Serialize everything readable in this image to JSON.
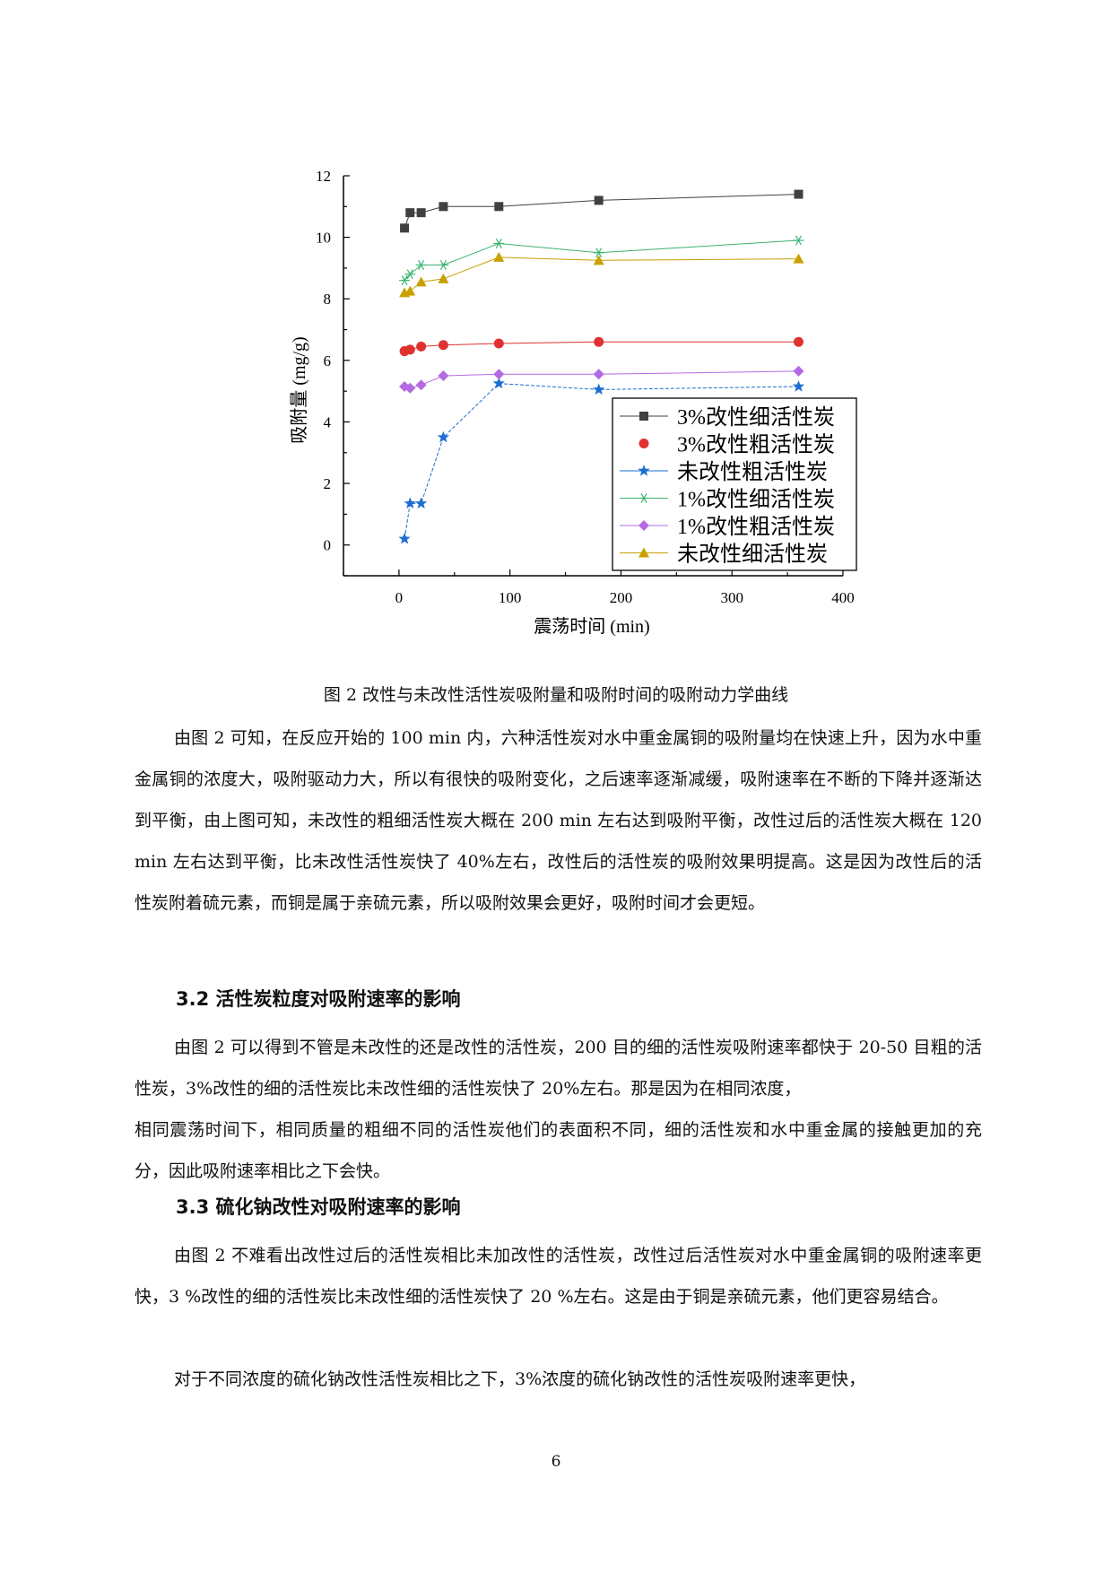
{
  "chart_data": {
    "type": "line",
    "xlabel": "震荡时间 (min)",
    "ylabel": "吸附量 (mg/g)",
    "xlim": [
      -50,
      400
    ],
    "ylim": [
      -1,
      12
    ],
    "xticks": [
      "0",
      "100",
      "200",
      "300",
      "400"
    ],
    "yticks": [
      "0",
      "2",
      "4",
      "6",
      "8",
      "10",
      "12"
    ],
    "legend_position": "bottom-right",
    "series": [
      {
        "name": "3%改性细活性炭",
        "marker": "square",
        "color": "#404040",
        "x": [
          5,
          10,
          20,
          40,
          90,
          180,
          360
        ],
        "y": [
          10.3,
          10.8,
          10.8,
          11.0,
          11.0,
          11.2,
          11.4
        ]
      },
      {
        "name": "3%改性粗活性炭",
        "marker": "circle",
        "color": "#e03131",
        "x": [
          5,
          10,
          20,
          40,
          90,
          180,
          360
        ],
        "y": [
          6.3,
          6.35,
          6.45,
          6.5,
          6.55,
          6.6,
          6.6
        ]
      },
      {
        "name": "未改性粗活性炭",
        "marker": "star",
        "color": "#1c6fd1",
        "x": [
          5,
          10,
          20,
          40,
          90,
          180,
          360
        ],
        "y": [
          0.2,
          1.35,
          1.35,
          3.5,
          5.25,
          5.05,
          5.15
        ]
      },
      {
        "name": "1%改性细活性炭",
        "marker": "asterisk",
        "color": "#3cb371",
        "x": [
          5,
          10,
          20,
          40,
          90,
          180,
          360
        ],
        "y": [
          8.6,
          8.8,
          9.1,
          9.1,
          9.8,
          9.5,
          9.9
        ]
      },
      {
        "name": "1%改性粗活性炭",
        "marker": "diamond",
        "color": "#b36ae2",
        "x": [
          5,
          10,
          20,
          40,
          90,
          180,
          360
        ],
        "y": [
          5.15,
          5.1,
          5.2,
          5.5,
          5.55,
          5.55,
          5.65
        ]
      },
      {
        "name": "未改性细活性炭",
        "marker": "triangle",
        "color": "#c9a000",
        "x": [
          5,
          10,
          20,
          40,
          90,
          180,
          360
        ],
        "y": [
          8.2,
          8.25,
          8.55,
          8.65,
          9.35,
          9.25,
          9.3
        ]
      }
    ]
  },
  "figure": {
    "caption": "图 2 改性与未改性活性炭吸附量和吸附时间的吸附动力学曲线"
  },
  "body": {
    "para1": "由图 2 可知，在反应开始的 100 min 内，六种活性炭对水中重金属铜的吸附量均在快速上升，因为水中重金属铜的浓度大，吸附驱动力大，所以有很快的吸附变化，之后速率逐渐减缓，吸附速率在不断的下降并逐渐达到平衡，由上图可知，未改性的粗细活性炭大概在 200 min 左右达到吸附平衡，改性过后的活性炭大概在 120 min 左右达到平衡，比未改性活性炭快了 40%左右，改性后的活性炭的吸附效果明提高。这是因为改性后的活性炭附着硫元素，而铜是属于亲硫元素，所以吸附效果会更好，吸附时间才会更短。",
    "heading1": "3.2 活性炭粒度对吸附速率的影响",
    "para2_line1": "由图 2 可以得到不管是未改性的还是改性的活性炭，200 目的细的活性炭吸附速率都快于 20-50 目粗的活性炭，3%改性的细的活性炭比未改性细的活性炭快了 20%左右。那是因为在相同浓度，",
    "para2_line2": "相同震荡时间下，相同质量的粗细不同的活性炭他们的表面积不同，细的活性炭和水中重金属的接触更加的充分，因此吸附速率相比之下会快。",
    "heading2": "3.3 硫化钠改性对吸附速率的影响",
    "para3": "由图 2 不难看出改性过后的活性炭相比未加改性的活性炭，改性过后活性炭对水中重金属铜的吸附速率更快，3 %改性的细的活性炭比未改性细的活性炭快了 20 %左右。这是由于铜是亲硫元素，他们更容易结合。",
    "para4": "对于不同浓度的硫化钠改性活性炭相比之下，3%浓度的硫化钠改性的活性炭吸附速率更快，"
  },
  "page_number": "6"
}
